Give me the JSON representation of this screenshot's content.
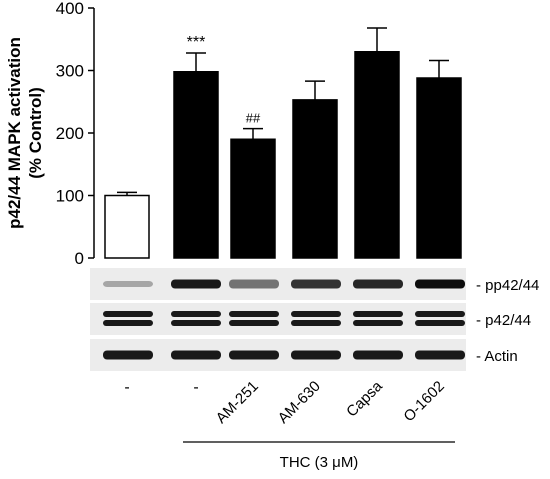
{
  "chart_data": {
    "type": "bar",
    "ylabel_line1": "p42/44 MAPK activation",
    "ylabel_line2": "(% Control)",
    "ylim": [
      0,
      400
    ],
    "yticks": [
      0,
      100,
      200,
      300,
      400
    ],
    "yticklabels": [
      "0",
      "100",
      "200",
      "300",
      "400"
    ],
    "grid": false,
    "categories": [
      "-",
      "-",
      "AM-251",
      "AM-630",
      "Capsa",
      "O-1602"
    ],
    "values": [
      100,
      298,
      190,
      253,
      330,
      288
    ],
    "errors": [
      5,
      30,
      17,
      30,
      38,
      28
    ],
    "bar_colors": [
      "#ffffff",
      "#000000",
      "#000000",
      "#000000",
      "#000000",
      "#000000"
    ],
    "annotations": [
      "",
      "***",
      "##",
      "",
      "",
      ""
    ],
    "group_label": "THC (3 μM)",
    "group_span": [
      1,
      5
    ]
  },
  "blot": {
    "rows": [
      {
        "label": "- pp42/44",
        "bands": 1,
        "intensity": [
          0.35,
          0.9,
          0.55,
          0.8,
          0.85,
          0.95
        ]
      },
      {
        "label": "- p42/44",
        "bands": 2,
        "intensity": [
          0.9,
          0.9,
          0.9,
          0.9,
          0.9,
          0.9
        ]
      },
      {
        "label": "- Actin",
        "bands": 1,
        "intensity": [
          0.9,
          0.9,
          0.9,
          0.9,
          0.9,
          0.9
        ]
      }
    ]
  }
}
